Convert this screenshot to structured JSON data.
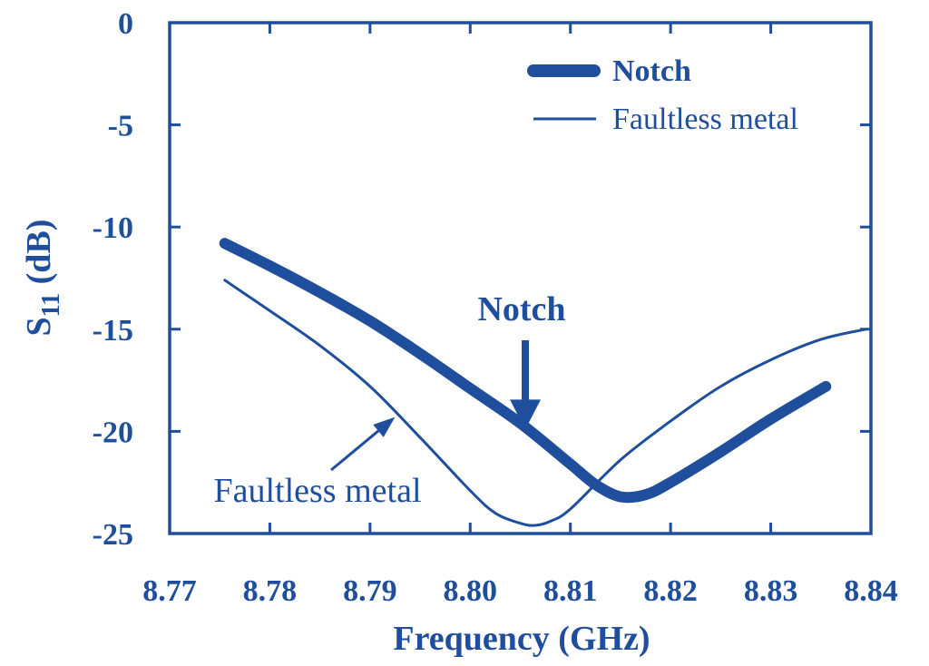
{
  "chart_data": {
    "type": "line",
    "title": "",
    "xlabel": "Frequency (GHz)",
    "ylabel": {
      "base": "S",
      "sub": "11",
      "unit": " (dB)"
    },
    "xlim": [
      8.77,
      8.84
    ],
    "ylim": [
      -25,
      0
    ],
    "xticks": [
      "8.77",
      "8.78",
      "8.79",
      "8.80",
      "8.81",
      "8.82",
      "8.83",
      "8.84"
    ],
    "yticks": [
      "0",
      "-5",
      "-10",
      "-15",
      "-20",
      "-25"
    ],
    "grid": false,
    "legend_position": "top-right",
    "color": "#1f4e9c",
    "series": [
      {
        "name": "Notch",
        "style": "thick",
        "x": [
          8.7755,
          8.78,
          8.785,
          8.79,
          8.795,
          8.8,
          8.805,
          8.81,
          8.8125,
          8.815,
          8.8175,
          8.82,
          8.825,
          8.83,
          8.8355
        ],
        "y": [
          -10.8,
          -11.9,
          -13.2,
          -14.6,
          -16.2,
          -17.9,
          -19.6,
          -21.6,
          -22.6,
          -23.2,
          -23.1,
          -22.5,
          -21.0,
          -19.4,
          -17.8
        ]
      },
      {
        "name": "Faultless metal",
        "style": "thin",
        "x": [
          8.7755,
          8.78,
          8.785,
          8.79,
          8.795,
          8.8,
          8.8025,
          8.805,
          8.8065,
          8.808,
          8.81,
          8.815,
          8.82,
          8.825,
          8.83,
          8.835,
          8.8395
        ],
        "y": [
          -12.6,
          -14.1,
          -15.8,
          -17.8,
          -20.3,
          -22.9,
          -24.0,
          -24.5,
          -24.6,
          -24.4,
          -23.8,
          -21.4,
          -19.5,
          -17.8,
          -16.5,
          -15.5,
          -15.0
        ]
      }
    ],
    "annotations": [
      {
        "label": "Notch",
        "style": "bold",
        "target": {
          "x": 8.8055,
          "y": -20.0
        }
      },
      {
        "label": "Faultless metal",
        "style": "normal",
        "target": {
          "x": 8.7925,
          "y": -19.3
        }
      }
    ]
  }
}
